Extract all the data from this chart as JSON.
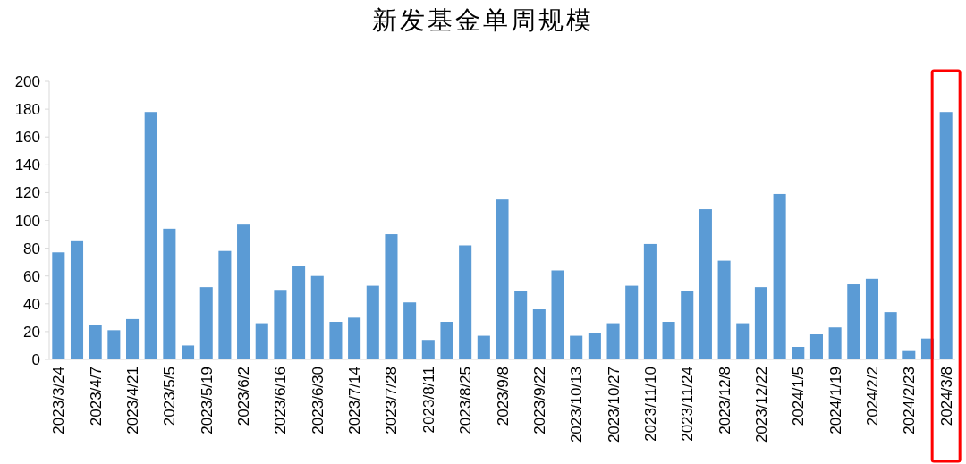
{
  "chart_data": {
    "type": "bar",
    "title": "新发基金单周规模",
    "categories": [
      "2023/3/24",
      null,
      "2023/4/7",
      null,
      "2023/4/21",
      null,
      "2023/5/5",
      null,
      "2023/5/19",
      null,
      "2023/6/2",
      null,
      "2023/6/16",
      null,
      "2023/6/30",
      null,
      "2023/7/14",
      null,
      "2023/7/28",
      null,
      "2023/8/11",
      null,
      "2023/8/25",
      null,
      "2023/9/8",
      null,
      "2023/9/22",
      null,
      "2023/10/13",
      null,
      "2023/10/27",
      null,
      "2023/11/10",
      null,
      "2023/11/24",
      null,
      "2023/12/8",
      null,
      "2023/12/22",
      null,
      "2024/1/5",
      null,
      "2024/1/19",
      null,
      "2024/2/2",
      null,
      "2024/2/23",
      null,
      "2024/3/8"
    ],
    "values": [
      77,
      85,
      25,
      21,
      29,
      178,
      94,
      10,
      52,
      78,
      97,
      26,
      50,
      67,
      60,
      27,
      30,
      53,
      90,
      41,
      14,
      27,
      82,
      17,
      115,
      49,
      36,
      64,
      17,
      19,
      26,
      53,
      83,
      27,
      49,
      108,
      71,
      26,
      52,
      119,
      9,
      18,
      23,
      54,
      58,
      34,
      6,
      15,
      178
    ],
    "color": "#5b9bd5",
    "ylim": [
      0,
      200
    ],
    "yticks": [
      0,
      20,
      40,
      60,
      80,
      100,
      120,
      140,
      160,
      180,
      200
    ]
  }
}
